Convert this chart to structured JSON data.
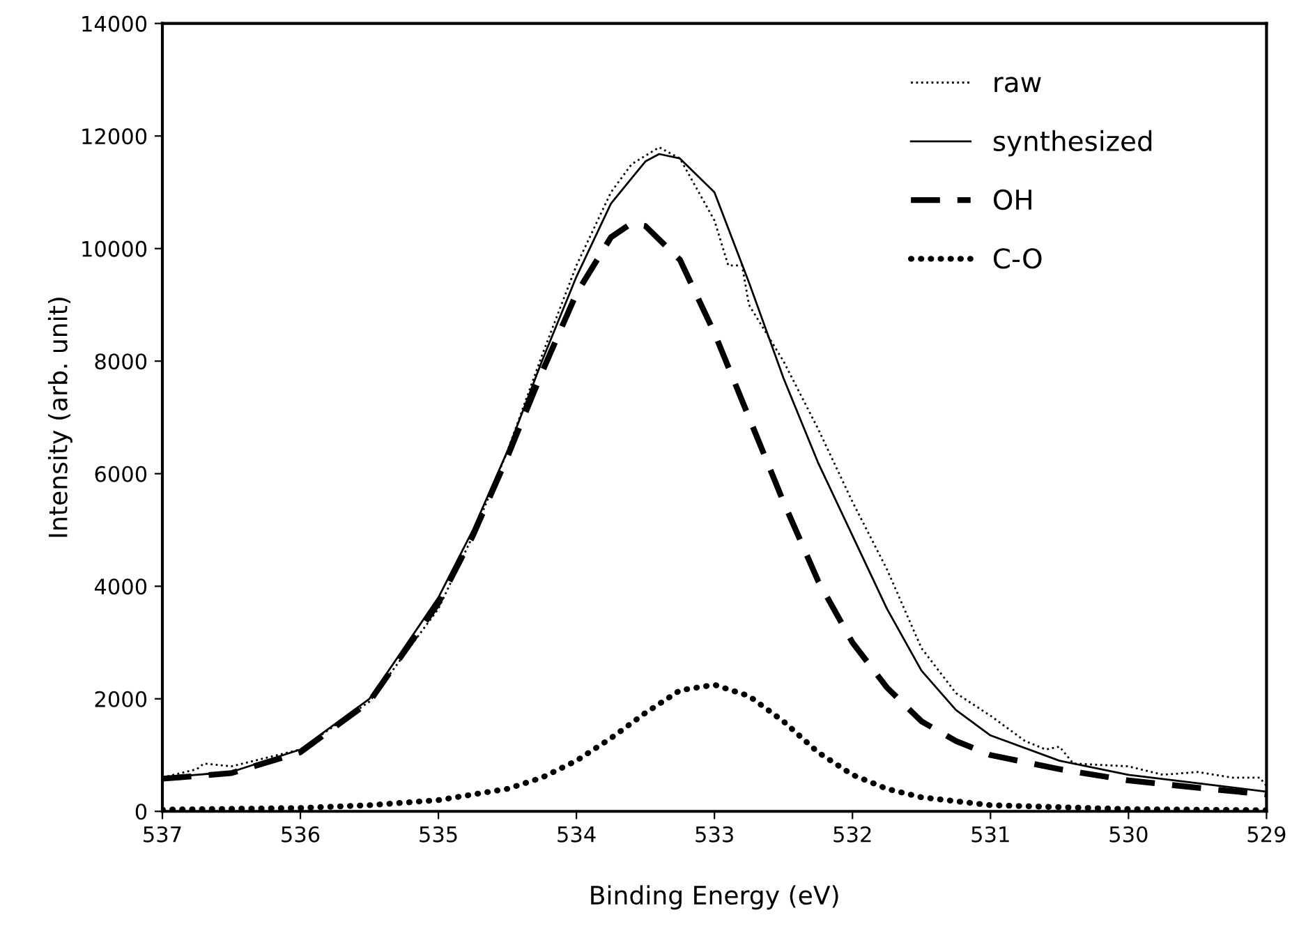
{
  "chart_data": {
    "type": "line",
    "xlabel": "Binding Energy (eV)",
    "ylabel": "Intensity (arb. unit)",
    "xlim": [
      537,
      529
    ],
    "xticks": [
      537,
      536,
      535,
      534,
      533,
      532,
      531,
      530,
      529
    ],
    "ylim": [
      0,
      14000
    ],
    "yticks": [
      0,
      2000,
      4000,
      6000,
      8000,
      10000,
      12000,
      14000
    ],
    "grid": false,
    "legend": "top right",
    "marker": "none",
    "series": [
      {
        "name": "raw",
        "color": "#000000",
        "line_style": "dotted",
        "x": [
          537,
          536.75,
          536.7,
          536.5,
          536,
          535.5,
          535,
          534.75,
          534.5,
          534.25,
          534,
          533.75,
          533.6,
          533.4,
          533.25,
          533,
          532.9,
          532.8,
          532.75,
          532.5,
          532.25,
          532,
          531.75,
          531.5,
          531.25,
          531,
          530.75,
          530.6,
          530.5,
          530.4,
          530,
          529.75,
          529.5,
          529.25,
          529.05,
          529
        ],
        "values": [
          600,
          750,
          850,
          800,
          1100,
          1950,
          3600,
          4900,
          6400,
          8100,
          9700,
          11000,
          11500,
          11800,
          11600,
          10500,
          9700,
          9700,
          9000,
          8000,
          6800,
          5500,
          4300,
          2900,
          2100,
          1700,
          1250,
          1100,
          1150,
          850,
          800,
          650,
          700,
          600,
          600,
          450
        ]
      },
      {
        "name": "synthesized",
        "color": "#000000",
        "line_style": "solid",
        "x": [
          537,
          536.5,
          536,
          535.5,
          535,
          534.75,
          534.5,
          534.25,
          534,
          533.75,
          533.5,
          533.4,
          533.25,
          533,
          532.75,
          532.5,
          532.25,
          532,
          531.75,
          531.5,
          531.25,
          531,
          530.5,
          530,
          529.5,
          529
        ],
        "values": [
          600,
          700,
          1100,
          2000,
          3800,
          5000,
          6400,
          8000,
          9500,
          10800,
          11550,
          11680,
          11600,
          11000,
          9400,
          7700,
          6200,
          4900,
          3600,
          2500,
          1800,
          1350,
          900,
          650,
          500,
          350
        ]
      },
      {
        "name": "OH",
        "color": "#000000",
        "line_style": "dashed",
        "x": [
          537,
          536.5,
          536,
          535.5,
          535,
          534.75,
          534.5,
          534.25,
          534,
          533.75,
          533.6,
          533.5,
          533.25,
          533,
          532.75,
          532.5,
          532.25,
          532,
          531.75,
          531.5,
          531.25,
          531,
          530.5,
          530,
          529.5,
          529
        ],
        "values": [
          580,
          680,
          1050,
          1950,
          3700,
          4900,
          6300,
          7800,
          9200,
          10200,
          10450,
          10400,
          9800,
          8500,
          7000,
          5500,
          4100,
          3000,
          2200,
          1600,
          1250,
          1000,
          750,
          550,
          420,
          300
        ]
      },
      {
        "name": "C-O",
        "color": "#000000",
        "line_style": "dotted",
        "x": [
          537,
          536,
          535.5,
          535,
          534.5,
          534.25,
          534,
          533.75,
          533.5,
          533.25,
          533,
          532.75,
          532.5,
          532.25,
          532,
          531.75,
          531.5,
          531,
          530,
          529
        ],
        "values": [
          30,
          60,
          110,
          200,
          400,
          600,
          900,
          1300,
          1750,
          2150,
          2250,
          2050,
          1600,
          1050,
          650,
          400,
          250,
          110,
          40,
          20
        ]
      }
    ]
  }
}
